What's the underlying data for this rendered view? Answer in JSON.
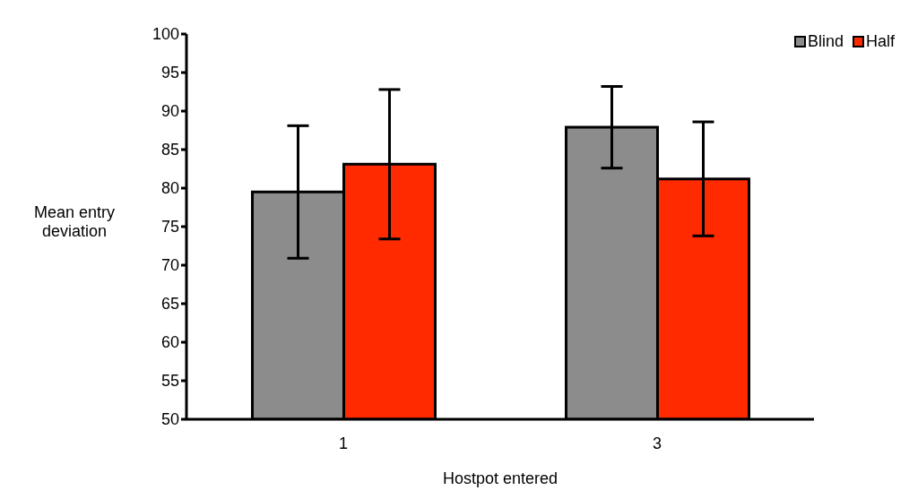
{
  "chart_data": {
    "type": "bar",
    "xlabel": "Hostpot entered",
    "ylabel": "Mean entry deviation",
    "categories": [
      "1",
      "3"
    ],
    "series": [
      {
        "name": "Blind",
        "color": "#8c8c8c",
        "values": [
          79.5,
          87.9
        ],
        "errors": [
          8.6,
          5.3
        ]
      },
      {
        "name": "Half",
        "color": "#ff2a00",
        "values": [
          83.1,
          81.2
        ],
        "errors": [
          9.7,
          7.4
        ]
      }
    ],
    "ylim": [
      50,
      100
    ],
    "yticks": [
      50,
      55,
      60,
      65,
      70,
      75,
      80,
      85,
      90,
      95,
      100
    ],
    "grid": false,
    "legend": "top right"
  }
}
